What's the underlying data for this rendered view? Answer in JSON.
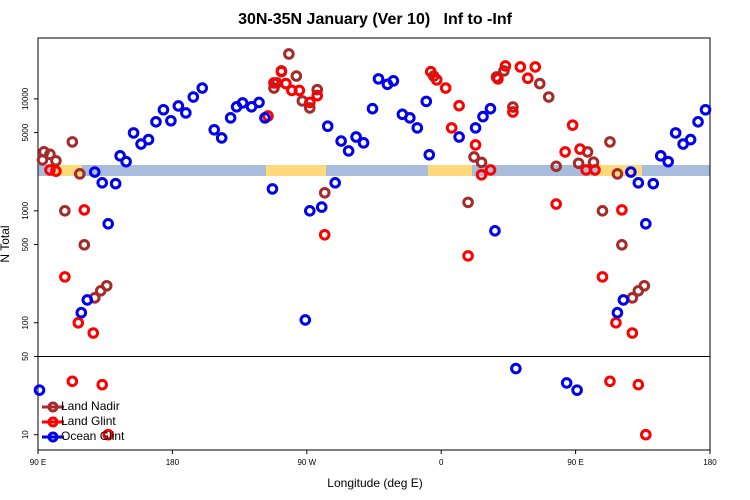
{
  "chart_data": {
    "type": "scatter",
    "title": "30N-35N January (Ver 10)   Inf to -Inf",
    "x_label": "Longitude (deg E)",
    "y_label": "N Total",
    "log_y": true,
    "xlim": [
      90,
      540
    ],
    "xticks": [
      {
        "value": 90,
        "label": "90 E"
      },
      180,
      {
        "value": 270,
        "label": "90 W"
      },
      {
        "value": 360,
        "label": "0"
      },
      {
        "value": 450,
        "label": "90 E"
      },
      180
    ],
    "ylim": [
      7.3,
      35000
    ],
    "yticks": [
      10,
      50,
      100,
      500,
      1000,
      5000,
      10000
    ],
    "hline": 50,
    "legend": "bottom-left",
    "series": [
      {
        "name": "Land Nadir",
        "color": "#a52a2a",
        "x": [
          93,
          94,
          98,
          102,
          113,
          118,
          108,
          121,
          128,
          132,
          136,
          248,
          250,
          253,
          258,
          263,
          267,
          272,
          277,
          282,
          355,
          382,
          387,
          378,
          397,
          402,
          408,
          426,
          432,
          437,
          452,
          458,
          462,
          468,
          473,
          478,
          481,
          488,
          492,
          496
        ],
        "values": [
          2850,
          3370,
          3200,
          2800,
          4130,
          2140,
          1000,
          497,
          167,
          193,
          214,
          12500,
          13900,
          17800,
          25200,
          16000,
          9600,
          8300,
          12100,
          1450,
          16000,
          3030,
          2710,
          1190,
          15700,
          17800,
          8460,
          13700,
          10400,
          2500,
          2660,
          3360,
          2720,
          1000,
          4130,
          2140,
          497,
          167,
          193,
          214
        ]
      },
      {
        "name": "Land Glint",
        "color": "#ff0000",
        "x": [
          98,
          102,
          108,
          117,
          121,
          127,
          113,
          133,
          137,
          244,
          248,
          253,
          256,
          260,
          265,
          272,
          277,
          282,
          353,
          357,
          363,
          367,
          372,
          378,
          383,
          387,
          393,
          398,
          403,
          413,
          423,
          408,
          418,
          437,
          443,
          448,
          453,
          457,
          463,
          468,
          473,
          477,
          481,
          488,
          492,
          497
        ],
        "values": [
          2320,
          2260,
          257,
          100,
          1020,
          81,
          30,
          28,
          10,
          7040,
          13900,
          17500,
          13700,
          11900,
          11900,
          9300,
          10700,
          611,
          17500,
          14800,
          12500,
          5510,
          8700,
          396,
          3880,
          2100,
          2320,
          15100,
          19700,
          19300,
          19300,
          7640,
          15300,
          1150,
          3360,
          5830,
          3560,
          2320,
          2320,
          257,
          30,
          100,
          1020,
          81,
          28,
          10
        ]
      },
      {
        "name": "Ocean Glint",
        "color": "#0000ee",
        "x": [
          91,
          128,
          133,
          137,
          142,
          123,
          119,
          145,
          149,
          154,
          159,
          164,
          169,
          174,
          179,
          184,
          189,
          194,
          200,
          208,
          213,
          219,
          223,
          227,
          233,
          238,
          242,
          247,
          272,
          269,
          280,
          284,
          289,
          293,
          298,
          303,
          308,
          314,
          318,
          324,
          328,
          334,
          339,
          344,
          350,
          352,
          372,
          383,
          388,
          393,
          396,
          410,
          444,
          451,
          478,
          482,
          487,
          492,
          497,
          502,
          507,
          512,
          517,
          522,
          527,
          532,
          537
        ],
        "values": [
          25,
          2220,
          1780,
          766,
          1750,
          160,
          123,
          3100,
          2750,
          4970,
          3950,
          4330,
          6240,
          8000,
          6380,
          8650,
          7500,
          10400,
          12500,
          5300,
          4480,
          6770,
          8500,
          9200,
          8500,
          9300,
          6770,
          1570,
          1000,
          106,
          1080,
          5700,
          1780,
          4200,
          3430,
          4570,
          4050,
          8180,
          15100,
          13500,
          14500,
          7280,
          6770,
          5510,
          9500,
          3170,
          4570,
          5510,
          6950,
          8180,
          663,
          39,
          29,
          25,
          123,
          160,
          2220,
          1780,
          766,
          1750,
          3100,
          2750,
          4970,
          3950,
          4330,
          6240,
          8000
        ]
      }
    ]
  }
}
